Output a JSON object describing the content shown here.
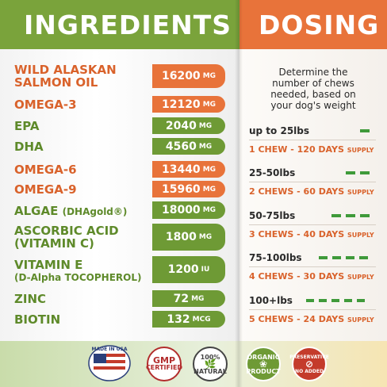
{
  "header": {
    "ingredients_title": "INGREDIENTS",
    "dosing_title": "DOSING"
  },
  "ingredients": [
    {
      "name": "WILD ALASKAN",
      "name2": "SALMON OIL",
      "value": "16200",
      "unit": "MG",
      "color": "orange"
    },
    {
      "name": "OMEGA-3",
      "value": "12120",
      "unit": "MG",
      "color": "orange"
    },
    {
      "name": "EPA",
      "value": "2040",
      "unit": "MG",
      "color": "green"
    },
    {
      "name": "DHA",
      "value": "4560",
      "unit": "MG",
      "color": "green"
    },
    {
      "name": "OMEGA-6",
      "value": "13440",
      "unit": "MG",
      "color": "orange"
    },
    {
      "name": "OMEGA-9",
      "value": "15960",
      "unit": "MG",
      "color": "orange"
    },
    {
      "name": "ALGAE",
      "name_suffix": "(DHAgold®)",
      "value": "18000",
      "unit": "MG",
      "color": "green"
    },
    {
      "name": "ASCORBIC ACID",
      "name2": "(VITAMIN C)",
      "value": "1800",
      "unit": "MG",
      "color": "green"
    },
    {
      "name": "VITAMIN E",
      "name2": "(D-Alpha TOCOPHEROL)",
      "value": "1200",
      "unit": "IU",
      "color": "green"
    },
    {
      "name": "ZINC",
      "value": "72",
      "unit": "MG",
      "color": "green"
    },
    {
      "name": "BIOTIN",
      "value": "132",
      "unit": "MCG",
      "color": "green"
    }
  ],
  "dosing": {
    "intro_line1": "Determine the",
    "intro_line2": "number of chews",
    "intro_line3": "needed, based on",
    "intro_line4": "your dog's weight",
    "tiers": [
      {
        "range": "up to 25lbs",
        "chews_text": "1 CHEW - 120 DAYS",
        "supply": "SUPPLY",
        "level": 1
      },
      {
        "range": "25-50lbs",
        "chews_text": "2 CHEWS - 60 DAYS",
        "supply": "SUPPLY",
        "level": 2
      },
      {
        "range": "50-75lbs",
        "chews_text": "3 CHEWS - 40 DAYS",
        "supply": "SUPPLY",
        "level": 3
      },
      {
        "range": "75-100lbs",
        "chews_text": "4 CHEWS - 30 DAYS",
        "supply": "SUPPLY",
        "level": 4
      },
      {
        "range": "100+lbs",
        "chews_text": "5 CHEWS - 24 DAYS",
        "supply": "SUPPLY",
        "level": 5
      }
    ]
  },
  "badges": {
    "usa": "MADE IN USA",
    "gmp_line1": "GMP",
    "gmp_line2": "CERTIFIED",
    "natural_line1": "100%",
    "natural_line2": "NATURAL",
    "organic_line1": "ORGANIC",
    "organic_line2": "PRODUCT",
    "preservative_line1": "PRESERVATIVE",
    "preservative_line2": "NO ADDED"
  },
  "colors": {
    "orange": "#e8733a",
    "green": "#6e9a35",
    "header_green": "#7aa33b",
    "dose_square": "#3f9a3a"
  }
}
